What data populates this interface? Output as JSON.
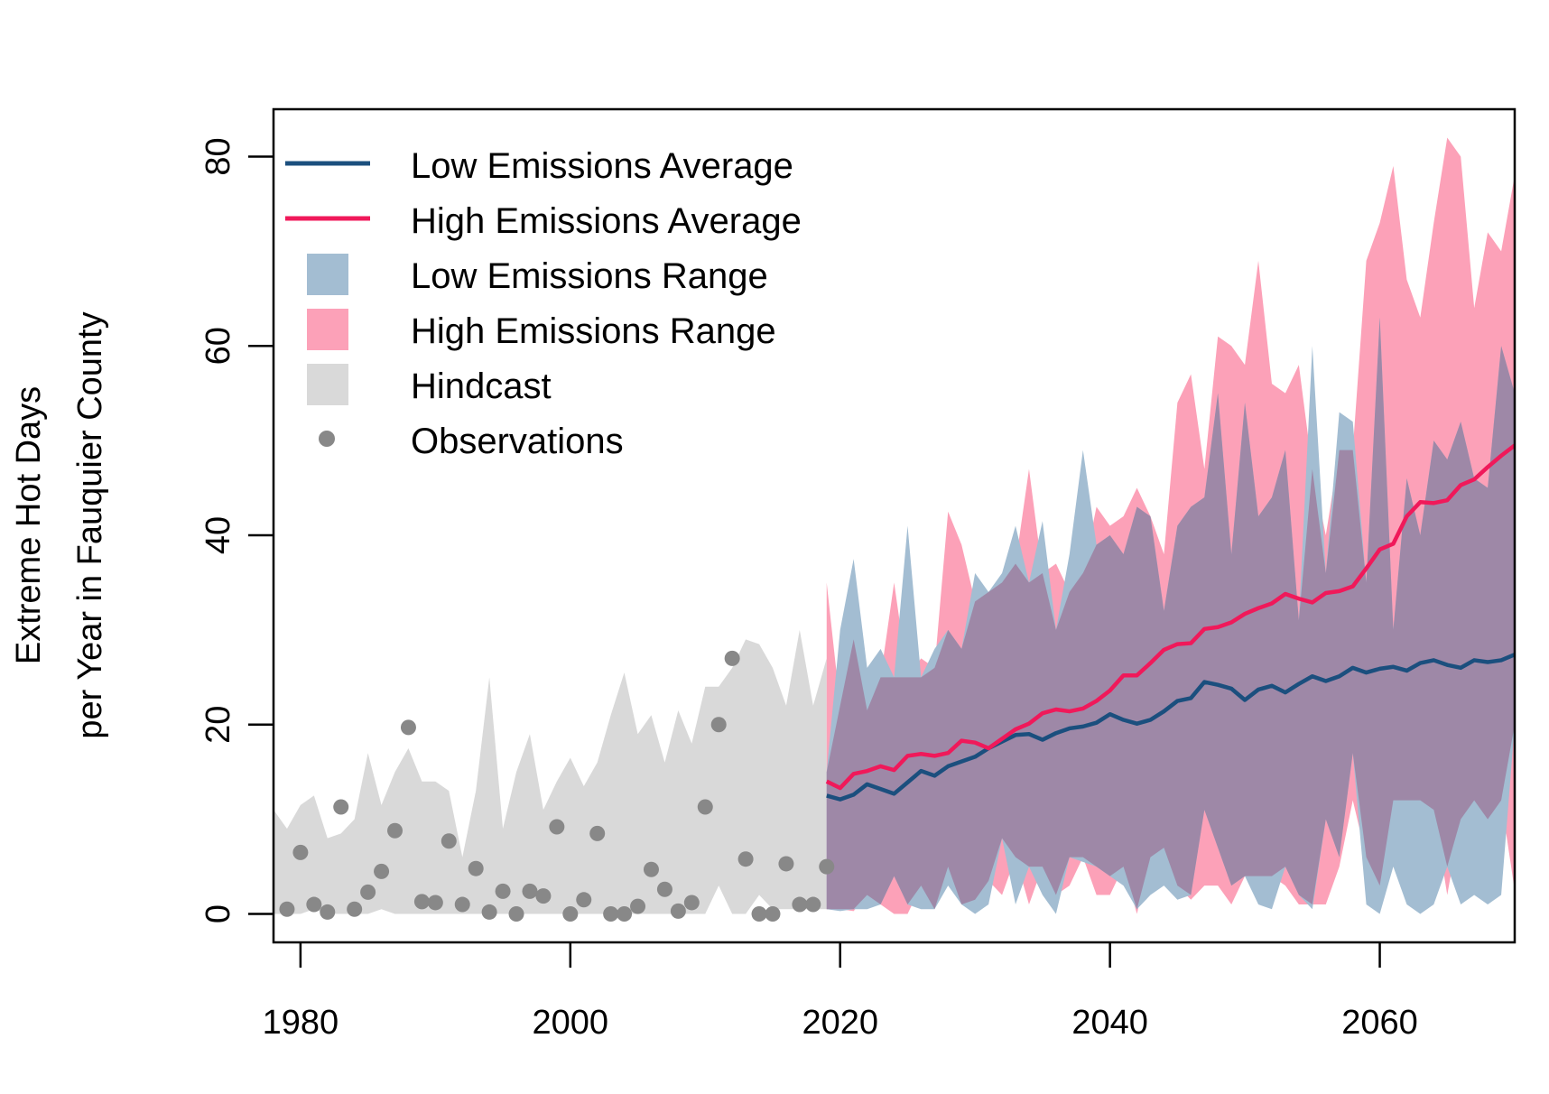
{
  "chart_data": {
    "type": "line",
    "title": "",
    "xlabel": "",
    "ylabel": [
      "Extreme Hot Days",
      "per Year in Fauquier County"
    ],
    "xlim": [
      1978,
      2070
    ],
    "ylim": [
      -3,
      85
    ],
    "xticks": [
      1980,
      2000,
      2020,
      2040,
      2060
    ],
    "yticks": [
      0,
      20,
      40,
      60,
      80
    ],
    "grid": false,
    "legend_position": "top-left",
    "colors": {
      "low_avg": "#1b4f7e",
      "high_avg": "#f0195a",
      "low_range": "#a3bdd2",
      "high_range": "#fca1b8",
      "overlap": "#9e88a7",
      "hindcast": "#d9d9d9",
      "observations": "#888888"
    },
    "legend": [
      {
        "label": "Low Emissions Average",
        "kind": "line",
        "key": "low_avg"
      },
      {
        "label": "High Emissions Average",
        "kind": "line",
        "key": "high_avg"
      },
      {
        "label": "Low Emissions Range",
        "kind": "box",
        "key": "low_range"
      },
      {
        "label": "High Emissions Range",
        "kind": "box",
        "key": "high_range"
      },
      {
        "label": "Hindcast",
        "kind": "box",
        "key": "hindcast"
      },
      {
        "label": "Observations",
        "kind": "dot",
        "key": "observations"
      }
    ],
    "hindcast": {
      "x": [
        1978,
        1979,
        1980,
        1981,
        1982,
        1983,
        1984,
        1985,
        1986,
        1987,
        1988,
        1989,
        1990,
        1991,
        1992,
        1993,
        1994,
        1995,
        1996,
        1997,
        1998,
        1999,
        2000,
        2001,
        2002,
        2003,
        2004,
        2005,
        2006,
        2007,
        2008,
        2009,
        2010,
        2011,
        2012,
        2013,
        2014,
        2015,
        2016,
        2017,
        2018,
        2019
      ],
      "upper": [
        11,
        9,
        11.5,
        12.5,
        8,
        8.5,
        10,
        17,
        11.5,
        15,
        17.5,
        14,
        14,
        13,
        6,
        13,
        25,
        9,
        15,
        19,
        11,
        14,
        16.5,
        13.5,
        16,
        21,
        25.5,
        19,
        21,
        16,
        21.5,
        18,
        24,
        24,
        26,
        29,
        28.5,
        26,
        22,
        30,
        22,
        27
      ],
      "lower": [
        0,
        0,
        0,
        0.5,
        0,
        0,
        0,
        0,
        0.5,
        0,
        0,
        0,
        0,
        0,
        0,
        0,
        0,
        0,
        0,
        0,
        0,
        0,
        0,
        0,
        0,
        0,
        0,
        0,
        0,
        0,
        0,
        0,
        0,
        3,
        0,
        0,
        2,
        0.5,
        0.5,
        0.5,
        0.5,
        0.5
      ]
    },
    "observations": {
      "x": [
        1979,
        1980,
        1981,
        1982,
        1983,
        1984,
        1985,
        1986,
        1987,
        1988,
        1989,
        1990,
        1991,
        1992,
        1993,
        1994,
        1995,
        1996,
        1997,
        1998,
        1999,
        2000,
        2001,
        2002,
        2003,
        2004,
        2005,
        2006,
        2007,
        2008,
        2009,
        2010,
        2011,
        2012,
        2013,
        2014,
        2015,
        2016,
        2017,
        2018,
        2019
      ],
      "y": [
        0.5,
        6.5,
        1,
        0.2,
        11.3,
        0.5,
        2.3,
        4.5,
        8.8,
        19.7,
        1.3,
        1.2,
        7.7,
        1,
        4.8,
        0.2,
        2.4,
        0,
        2.4,
        1.9,
        9.2,
        0,
        1.5,
        8.5,
        0,
        0,
        0.8,
        4.7,
        2.6,
        0.3,
        1.2,
        11.3,
        20,
        27,
        5.8,
        0,
        0,
        5.3,
        1,
        1,
        5
      ]
    },
    "low_emissions": {
      "x": [
        2019,
        2020,
        2021,
        2022,
        2023,
        2024,
        2025,
        2026,
        2027,
        2028,
        2029,
        2030,
        2031,
        2032,
        2033,
        2034,
        2035,
        2036,
        2037,
        2038,
        2039,
        2040,
        2041,
        2042,
        2043,
        2044,
        2045,
        2046,
        2047,
        2048,
        2049,
        2050,
        2051,
        2052,
        2053,
        2054,
        2055,
        2056,
        2057,
        2058,
        2059,
        2060,
        2061,
        2062,
        2063,
        2064,
        2065,
        2066,
        2067,
        2068,
        2069,
        2070
      ],
      "average": [
        12.5,
        12.1,
        12.6,
        13.7,
        13.2,
        12.7,
        13.9,
        15.1,
        14.6,
        15.6,
        16.1,
        16.6,
        17.5,
        18.2,
        18.9,
        19.0,
        18.4,
        19.1,
        19.6,
        19.8,
        20.2,
        21.1,
        20.5,
        20.1,
        20.5,
        21.4,
        22.5,
        22.8,
        24.5,
        24.2,
        23.8,
        22.6,
        23.7,
        24.1,
        23.4,
        24.3,
        25.1,
        24.6,
        25.1,
        26.0,
        25.5,
        25.9,
        26.1,
        25.7,
        26.5,
        26.8,
        26.3,
        26.0,
        26.8,
        26.6,
        26.8,
        27.4
      ],
      "upper": [
        15,
        30,
        37.5,
        26,
        28,
        25,
        41,
        25,
        28,
        30,
        28,
        36,
        34,
        36,
        41,
        35,
        41.5,
        30,
        38,
        49,
        39,
        40,
        38,
        43,
        42,
        32,
        41,
        43,
        44,
        55,
        38,
        54,
        42,
        44,
        49,
        31,
        60,
        36,
        53,
        52,
        35,
        63,
        30,
        46,
        40,
        50,
        48,
        52,
        46,
        45,
        60,
        55
      ],
      "lower": [
        0.5,
        0.3,
        0.5,
        0.5,
        1,
        4,
        1,
        0.5,
        0.5,
        3,
        1,
        0,
        1,
        8,
        1,
        5,
        2,
        0,
        6,
        5.5,
        5,
        4,
        3,
        0.5,
        2,
        3,
        1.5,
        2,
        11,
        7,
        3,
        4,
        1,
        0.5,
        5,
        2,
        0.5,
        10,
        6,
        17,
        1,
        0,
        5,
        1,
        0,
        1,
        5,
        1,
        2,
        1,
        2,
        20
      ]
    },
    "high_emissions": {
      "x": [
        2019,
        2020,
        2021,
        2022,
        2023,
        2024,
        2025,
        2026,
        2027,
        2028,
        2029,
        2030,
        2031,
        2032,
        2033,
        2034,
        2035,
        2036,
        2037,
        2038,
        2039,
        2040,
        2041,
        2042,
        2043,
        2044,
        2045,
        2046,
        2047,
        2048,
        2049,
        2050,
        2051,
        2052,
        2053,
        2054,
        2055,
        2056,
        2057,
        2058,
        2059,
        2060,
        2061,
        2062,
        2063,
        2064,
        2065,
        2066,
        2067,
        2068,
        2069,
        2070
      ],
      "average": [
        14.0,
        13.3,
        14.8,
        15.1,
        15.6,
        15.2,
        16.7,
        16.9,
        16.7,
        17.0,
        18.3,
        18.1,
        17.5,
        18.5,
        19.5,
        20.1,
        21.2,
        21.6,
        21.4,
        21.7,
        22.5,
        23.6,
        25.2,
        25.2,
        26.5,
        27.9,
        28.5,
        28.6,
        30.1,
        30.3,
        30.8,
        31.7,
        32.3,
        32.8,
        33.8,
        33.3,
        32.9,
        33.9,
        34.1,
        34.6,
        36.5,
        38.5,
        39.1,
        42.0,
        43.5,
        43.4,
        43.7,
        45.3,
        45.9,
        47.2,
        48.4,
        49.5
      ],
      "upper": [
        35,
        22,
        29,
        21.5,
        25,
        35,
        25,
        27,
        26,
        42.5,
        39,
        33,
        34,
        35,
        37,
        47,
        36,
        37,
        34,
        36,
        43,
        41,
        42,
        45,
        42,
        38,
        54,
        57,
        47,
        61,
        60,
        58,
        69,
        56,
        55,
        58,
        47,
        40,
        49,
        49,
        69,
        73,
        79,
        67,
        63,
        73,
        82,
        80,
        64,
        72,
        70,
        78
      ],
      "lower": [
        0.5,
        0.5,
        0.3,
        2,
        1,
        0,
        0,
        3,
        0.5,
        5,
        1,
        1.5,
        3.5,
        2,
        6,
        1,
        5,
        2,
        3,
        6,
        2,
        2,
        5,
        0,
        6,
        7,
        3,
        1.5,
        3,
        3,
        1,
        4,
        4,
        4,
        3,
        1,
        1,
        1,
        5,
        12,
        6,
        3,
        12,
        12,
        12,
        11,
        2,
        10,
        12,
        10,
        12,
        2.5
      ]
    }
  }
}
